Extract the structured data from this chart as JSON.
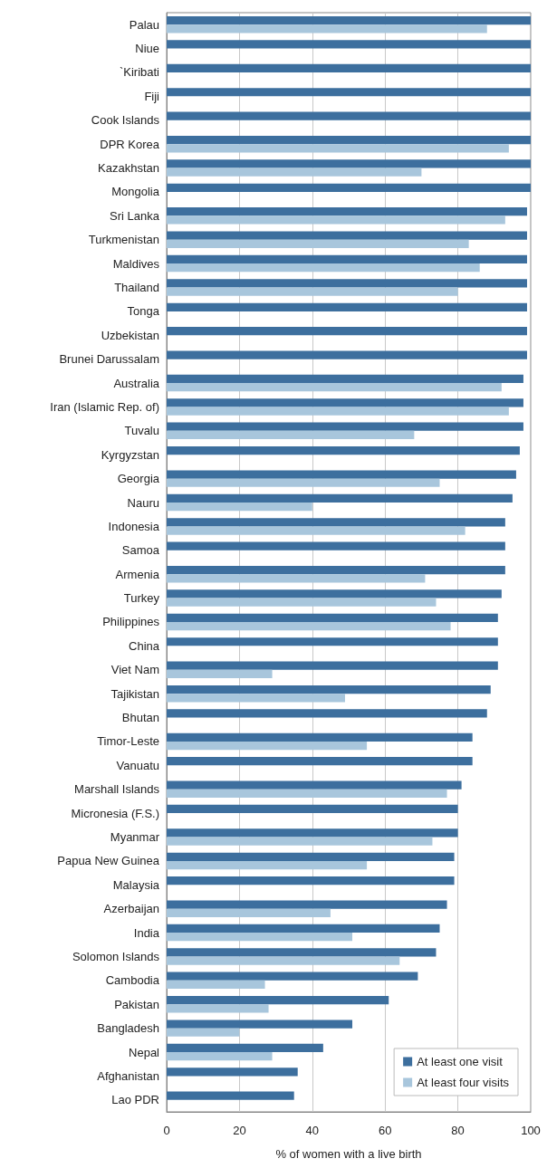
{
  "chart_data": {
    "type": "bar",
    "orientation": "horizontal",
    "xlabel": "% of women with a live birth",
    "categories": [
      "Palau",
      "Niue",
      "`Kiribati",
      "Fiji",
      "Cook Islands",
      "DPR Korea",
      "Kazakhstan",
      "Mongolia",
      "Sri Lanka",
      "Turkmenistan",
      "Maldives",
      "Thailand",
      "Tonga",
      "Uzbekistan",
      "Brunei Darussalam",
      "Australia",
      "Iran (Islamic Rep. of)",
      "Tuvalu",
      "Kyrgyzstan",
      "Georgia",
      "Nauru",
      "Indonesia",
      "Samoa",
      "Armenia",
      "Turkey",
      "Philippines",
      "China",
      "Viet Nam",
      "Tajikistan",
      "Bhutan",
      "Timor-Leste",
      "Vanuatu",
      "Marshall Islands",
      "Micronesia (F.S.)",
      "Myanmar",
      "Papua New Guinea",
      "Malaysia",
      "Azerbaijan",
      "India",
      "Solomon Islands",
      "Cambodia",
      "Pakistan",
      "Bangladesh",
      "Nepal",
      "Afghanistan",
      "Lao PDR"
    ],
    "series": [
      {
        "name": "At least one visit",
        "color": "#3d6f9e",
        "values": [
          100,
          100,
          100,
          100,
          100,
          100,
          100,
          100,
          99,
          99,
          99,
          99,
          99,
          99,
          99,
          98,
          98,
          98,
          97,
          96,
          95,
          93,
          93,
          93,
          92,
          91,
          91,
          91,
          89,
          88,
          84,
          84,
          81,
          80,
          80,
          79,
          79,
          77,
          75,
          74,
          69,
          61,
          51,
          43,
          36,
          35
        ]
      },
      {
        "name": "At least four visits",
        "color": "#a8c6dc",
        "values": [
          88,
          null,
          null,
          null,
          null,
          94,
          70,
          null,
          93,
          83,
          86,
          80,
          null,
          null,
          null,
          92,
          94,
          68,
          null,
          75,
          40,
          82,
          null,
          71,
          74,
          78,
          null,
          29,
          49,
          null,
          55,
          null,
          77,
          null,
          73,
          55,
          null,
          45,
          51,
          64,
          27,
          28,
          20,
          29,
          null,
          null
        ]
      }
    ],
    "xlim": [
      0,
      100
    ],
    "xticks": [
      0,
      20,
      40,
      60,
      80,
      100
    ],
    "grid": "x",
    "legend": "bottom right"
  }
}
